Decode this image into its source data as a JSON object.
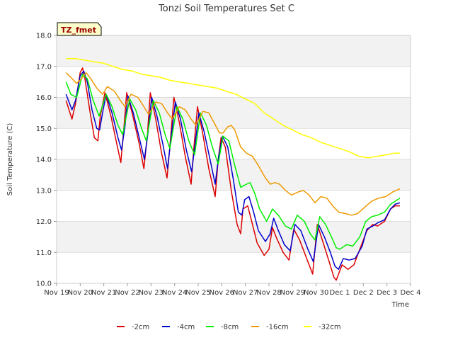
{
  "chart_data": {
    "type": "line",
    "title": "Tonzi Soil Temperatures Set C",
    "xlabel": "Time",
    "ylabel": "Soil Temperature (C)",
    "ylim": [
      10.0,
      18.0
    ],
    "yticks": [
      "10.0",
      "11.0",
      "12.0",
      "13.0",
      "14.0",
      "15.0",
      "16.0",
      "17.0",
      "18.0"
    ],
    "xlim": [
      0,
      15
    ],
    "xticks": [
      "Nov 19",
      "Nov 20",
      "Nov 21",
      "Nov 22",
      "Nov 23",
      "Nov 24",
      "Nov 25",
      "Nov 26",
      "Nov 27",
      "Nov 28",
      "Nov 29",
      "Nov 30",
      "Dec 1",
      "Dec 2",
      "Dec 3",
      "Dec 4"
    ],
    "grid": true,
    "legend_position": "bottom",
    "badge": "TZ_fmet",
    "x_unit": "days since Nov 19",
    "series": [
      {
        "name": "-2cm",
        "color": "#dd0000",
        "points": [
          [
            0.4,
            15.9
          ],
          [
            0.65,
            15.3
          ],
          [
            0.8,
            15.8
          ],
          [
            1.0,
            16.8
          ],
          [
            1.1,
            16.95
          ],
          [
            1.2,
            16.6
          ],
          [
            1.4,
            15.6
          ],
          [
            1.6,
            14.7
          ],
          [
            1.75,
            14.6
          ],
          [
            1.85,
            15.4
          ],
          [
            2.05,
            16.15
          ],
          [
            2.3,
            15.4
          ],
          [
            2.55,
            14.5
          ],
          [
            2.72,
            13.9
          ],
          [
            2.85,
            15.0
          ],
          [
            2.97,
            16.15
          ],
          [
            3.2,
            15.5
          ],
          [
            3.5,
            14.5
          ],
          [
            3.7,
            13.7
          ],
          [
            3.85,
            14.8
          ],
          [
            3.97,
            16.15
          ],
          [
            4.2,
            15.3
          ],
          [
            4.45,
            14.2
          ],
          [
            4.68,
            13.4
          ],
          [
            4.82,
            14.6
          ],
          [
            4.97,
            16.0
          ],
          [
            5.2,
            15.2
          ],
          [
            5.45,
            14.1
          ],
          [
            5.7,
            13.2
          ],
          [
            5.82,
            14.4
          ],
          [
            5.97,
            15.7
          ],
          [
            6.2,
            14.8
          ],
          [
            6.45,
            13.7
          ],
          [
            6.72,
            12.8
          ],
          [
            6.85,
            14.0
          ],
          [
            6.97,
            14.7
          ],
          [
            7.15,
            14.4
          ],
          [
            7.4,
            13.0
          ],
          [
            7.65,
            11.9
          ],
          [
            7.8,
            11.6
          ],
          [
            7.9,
            12.4
          ],
          [
            8.1,
            12.5
          ],
          [
            8.3,
            11.9
          ],
          [
            8.5,
            11.3
          ],
          [
            8.8,
            10.9
          ],
          [
            9.0,
            11.1
          ],
          [
            9.15,
            11.8
          ],
          [
            9.3,
            11.5
          ],
          [
            9.6,
            11.0
          ],
          [
            9.85,
            10.75
          ],
          [
            10.05,
            11.75
          ],
          [
            10.3,
            11.4
          ],
          [
            10.6,
            10.8
          ],
          [
            10.85,
            10.3
          ],
          [
            11.05,
            11.9
          ],
          [
            11.3,
            11.3
          ],
          [
            11.55,
            10.7
          ],
          [
            11.75,
            10.2
          ],
          [
            11.85,
            10.1
          ],
          [
            12.1,
            10.6
          ],
          [
            12.35,
            10.45
          ],
          [
            12.6,
            10.6
          ],
          [
            12.95,
            11.3
          ],
          [
            13.15,
            11.7
          ],
          [
            13.4,
            11.9
          ],
          [
            13.6,
            11.85
          ],
          [
            13.9,
            12.0
          ],
          [
            14.15,
            12.4
          ],
          [
            14.35,
            12.5
          ],
          [
            14.55,
            12.5
          ]
        ]
      },
      {
        "name": "-4cm",
        "color": "#0000cc",
        "points": [
          [
            0.4,
            16.1
          ],
          [
            0.65,
            15.6
          ],
          [
            0.8,
            15.9
          ],
          [
            1.0,
            16.7
          ],
          [
            1.15,
            16.85
          ],
          [
            1.3,
            16.5
          ],
          [
            1.5,
            15.6
          ],
          [
            1.7,
            15.0
          ],
          [
            1.82,
            14.95
          ],
          [
            1.97,
            15.6
          ],
          [
            2.1,
            16.1
          ],
          [
            2.35,
            15.5
          ],
          [
            2.6,
            14.7
          ],
          [
            2.75,
            14.3
          ],
          [
            2.9,
            15.1
          ],
          [
            3.02,
            16.05
          ],
          [
            3.25,
            15.5
          ],
          [
            3.5,
            14.7
          ],
          [
            3.72,
            14.0
          ],
          [
            3.88,
            14.9
          ],
          [
            4.03,
            16.0
          ],
          [
            4.25,
            15.4
          ],
          [
            4.5,
            14.5
          ],
          [
            4.7,
            13.7
          ],
          [
            4.85,
            14.7
          ],
          [
            5.03,
            15.85
          ],
          [
            5.25,
            15.3
          ],
          [
            5.5,
            14.3
          ],
          [
            5.72,
            13.6
          ],
          [
            5.87,
            14.5
          ],
          [
            6.03,
            15.5
          ],
          [
            6.25,
            14.9
          ],
          [
            6.5,
            14.0
          ],
          [
            6.72,
            13.2
          ],
          [
            6.87,
            14.1
          ],
          [
            7.03,
            14.75
          ],
          [
            7.25,
            14.4
          ],
          [
            7.5,
            13.3
          ],
          [
            7.7,
            12.3
          ],
          [
            7.85,
            12.2
          ],
          [
            7.97,
            12.7
          ],
          [
            8.15,
            12.8
          ],
          [
            8.35,
            12.3
          ],
          [
            8.55,
            11.7
          ],
          [
            8.85,
            11.35
          ],
          [
            9.05,
            11.6
          ],
          [
            9.2,
            12.1
          ],
          [
            9.4,
            11.7
          ],
          [
            9.65,
            11.25
          ],
          [
            9.9,
            11.05
          ],
          [
            10.1,
            11.9
          ],
          [
            10.35,
            11.7
          ],
          [
            10.65,
            11.1
          ],
          [
            10.88,
            10.7
          ],
          [
            11.1,
            11.9
          ],
          [
            11.35,
            11.5
          ],
          [
            11.6,
            11.0
          ],
          [
            11.8,
            10.55
          ],
          [
            11.95,
            10.45
          ],
          [
            12.15,
            10.8
          ],
          [
            12.4,
            10.75
          ],
          [
            12.65,
            10.8
          ],
          [
            12.95,
            11.2
          ],
          [
            13.15,
            11.75
          ],
          [
            13.4,
            11.85
          ],
          [
            13.6,
            11.95
          ],
          [
            13.9,
            12.05
          ],
          [
            14.15,
            12.4
          ],
          [
            14.35,
            12.55
          ],
          [
            14.55,
            12.6
          ]
        ]
      },
      {
        "name": "-8cm",
        "color": "#00ee00",
        "points": [
          [
            0.4,
            16.5
          ],
          [
            0.6,
            16.1
          ],
          [
            0.85,
            16.0
          ],
          [
            1.1,
            16.75
          ],
          [
            1.3,
            16.6
          ],
          [
            1.55,
            15.9
          ],
          [
            1.8,
            15.4
          ],
          [
            2.1,
            16.1
          ],
          [
            2.35,
            15.7
          ],
          [
            2.6,
            15.1
          ],
          [
            2.8,
            14.8
          ],
          [
            3.1,
            15.95
          ],
          [
            3.35,
            15.6
          ],
          [
            3.6,
            15.0
          ],
          [
            3.8,
            14.6
          ],
          [
            4.1,
            15.9
          ],
          [
            4.35,
            15.5
          ],
          [
            4.6,
            14.8
          ],
          [
            4.8,
            14.35
          ],
          [
            5.1,
            15.7
          ],
          [
            5.35,
            15.3
          ],
          [
            5.6,
            14.6
          ],
          [
            5.85,
            14.15
          ],
          [
            6.1,
            15.5
          ],
          [
            6.35,
            15.1
          ],
          [
            6.6,
            14.4
          ],
          [
            6.85,
            13.85
          ],
          [
            7.05,
            14.75
          ],
          [
            7.3,
            14.6
          ],
          [
            7.55,
            13.8
          ],
          [
            7.8,
            13.1
          ],
          [
            8.05,
            13.2
          ],
          [
            8.2,
            13.25
          ],
          [
            8.4,
            12.9
          ],
          [
            8.6,
            12.4
          ],
          [
            8.9,
            12.0
          ],
          [
            9.15,
            12.4
          ],
          [
            9.4,
            12.2
          ],
          [
            9.7,
            11.85
          ],
          [
            9.95,
            11.75
          ],
          [
            10.2,
            12.2
          ],
          [
            10.5,
            12.0
          ],
          [
            10.75,
            11.6
          ],
          [
            10.95,
            11.4
          ],
          [
            11.15,
            12.15
          ],
          [
            11.4,
            11.9
          ],
          [
            11.65,
            11.5
          ],
          [
            11.85,
            11.15
          ],
          [
            12.0,
            11.1
          ],
          [
            12.3,
            11.25
          ],
          [
            12.55,
            11.2
          ],
          [
            12.85,
            11.5
          ],
          [
            13.1,
            12.0
          ],
          [
            13.35,
            12.15
          ],
          [
            13.6,
            12.2
          ],
          [
            13.9,
            12.3
          ],
          [
            14.15,
            12.55
          ],
          [
            14.35,
            12.65
          ],
          [
            14.55,
            12.75
          ]
        ]
      },
      {
        "name": "-16cm",
        "color": "#ee9900",
        "points": [
          [
            0.4,
            16.8
          ],
          [
            0.6,
            16.65
          ],
          [
            0.85,
            16.45
          ],
          [
            1.05,
            16.6
          ],
          [
            1.25,
            16.8
          ],
          [
            1.45,
            16.6
          ],
          [
            1.7,
            16.3
          ],
          [
            1.95,
            16.1
          ],
          [
            2.15,
            16.35
          ],
          [
            2.45,
            16.2
          ],
          [
            2.7,
            15.9
          ],
          [
            2.9,
            15.7
          ],
          [
            3.15,
            16.1
          ],
          [
            3.45,
            16.0
          ],
          [
            3.7,
            15.7
          ],
          [
            3.9,
            15.45
          ],
          [
            4.2,
            15.85
          ],
          [
            4.45,
            15.8
          ],
          [
            4.7,
            15.5
          ],
          [
            4.9,
            15.3
          ],
          [
            5.2,
            15.7
          ],
          [
            5.45,
            15.6
          ],
          [
            5.7,
            15.3
          ],
          [
            5.9,
            15.1
          ],
          [
            6.2,
            15.55
          ],
          [
            6.45,
            15.5
          ],
          [
            6.7,
            15.15
          ],
          [
            6.9,
            14.85
          ],
          [
            7.05,
            14.85
          ],
          [
            7.25,
            15.05
          ],
          [
            7.4,
            15.1
          ],
          [
            7.55,
            14.95
          ],
          [
            7.8,
            14.4
          ],
          [
            8.05,
            14.2
          ],
          [
            8.3,
            14.1
          ],
          [
            8.55,
            13.8
          ],
          [
            8.85,
            13.4
          ],
          [
            9.05,
            13.2
          ],
          [
            9.25,
            13.25
          ],
          [
            9.45,
            13.2
          ],
          [
            9.7,
            13.0
          ],
          [
            9.95,
            12.85
          ],
          [
            10.25,
            12.95
          ],
          [
            10.45,
            13.0
          ],
          [
            10.7,
            12.85
          ],
          [
            10.95,
            12.6
          ],
          [
            11.2,
            12.8
          ],
          [
            11.45,
            12.75
          ],
          [
            11.7,
            12.5
          ],
          [
            11.95,
            12.3
          ],
          [
            12.25,
            12.25
          ],
          [
            12.5,
            12.2
          ],
          [
            12.75,
            12.25
          ],
          [
            13.05,
            12.45
          ],
          [
            13.35,
            12.65
          ],
          [
            13.65,
            12.75
          ],
          [
            13.95,
            12.8
          ],
          [
            14.25,
            12.95
          ],
          [
            14.55,
            13.05
          ]
        ]
      },
      {
        "name": "-32cm",
        "color": "#ffff00",
        "points": [
          [
            0.4,
            17.25
          ],
          [
            0.8,
            17.25
          ],
          [
            1.2,
            17.2
          ],
          [
            1.6,
            17.15
          ],
          [
            2.0,
            17.1
          ],
          [
            2.4,
            17.0
          ],
          [
            2.8,
            16.9
          ],
          [
            3.2,
            16.85
          ],
          [
            3.6,
            16.75
          ],
          [
            4.0,
            16.7
          ],
          [
            4.4,
            16.65
          ],
          [
            4.8,
            16.55
          ],
          [
            5.2,
            16.5
          ],
          [
            5.6,
            16.45
          ],
          [
            6.0,
            16.4
          ],
          [
            6.4,
            16.35
          ],
          [
            6.8,
            16.3
          ],
          [
            7.2,
            16.2
          ],
          [
            7.6,
            16.1
          ],
          [
            8.0,
            15.95
          ],
          [
            8.4,
            15.8
          ],
          [
            8.8,
            15.5
          ],
          [
            9.2,
            15.3
          ],
          [
            9.6,
            15.1
          ],
          [
            10.0,
            14.95
          ],
          [
            10.4,
            14.8
          ],
          [
            10.8,
            14.7
          ],
          [
            11.2,
            14.55
          ],
          [
            11.6,
            14.45
          ],
          [
            12.0,
            14.35
          ],
          [
            12.4,
            14.25
          ],
          [
            12.8,
            14.1
          ],
          [
            13.2,
            14.05
          ],
          [
            13.6,
            14.1
          ],
          [
            14.0,
            14.15
          ],
          [
            14.3,
            14.2
          ],
          [
            14.55,
            14.2
          ]
        ]
      }
    ]
  }
}
